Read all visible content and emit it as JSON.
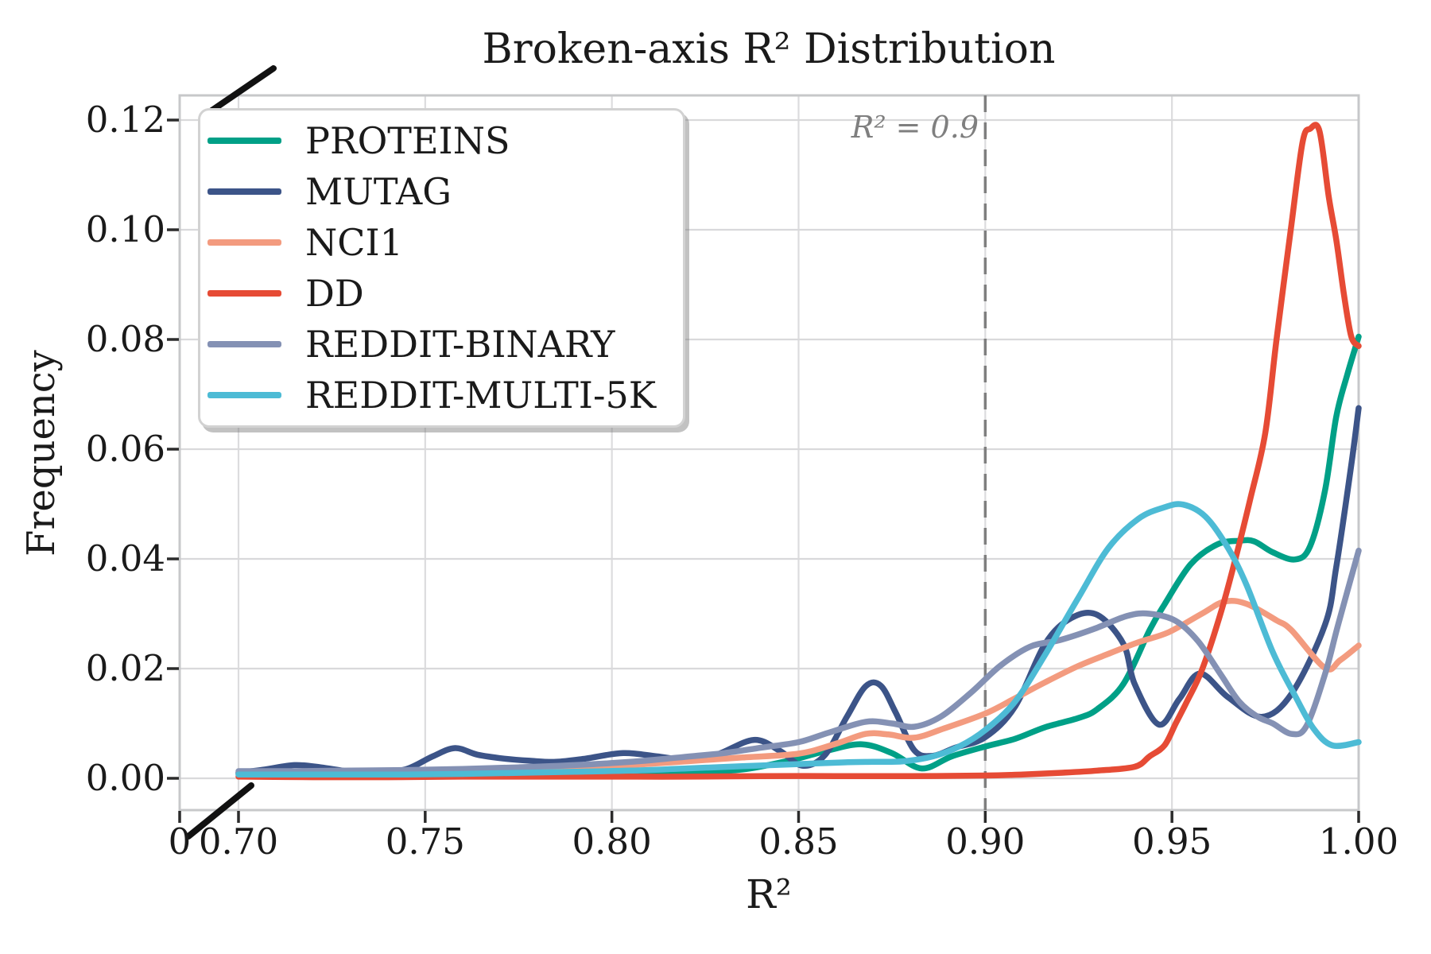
{
  "chart_data": {
    "type": "line",
    "title": "Broken-axis R² Distribution",
    "xlabel": "R²",
    "ylabel": "Frequency",
    "xlim": [
      0.7,
      1.0
    ],
    "ylim": [
      0.0,
      0.1245
    ],
    "grid": true,
    "legend_position": "upper left",
    "axis_break": {
      "axis": "x",
      "between": [
        "0",
        "0.70"
      ]
    },
    "x_ticks": [
      {
        "label": "0",
        "value": 0
      },
      {
        "label": "0.70",
        "value": 0.7
      },
      {
        "label": "0.75",
        "value": 0.75
      },
      {
        "label": "0.80",
        "value": 0.8
      },
      {
        "label": "0.85",
        "value": 0.85
      },
      {
        "label": "0.90",
        "value": 0.9
      },
      {
        "label": "0.95",
        "value": 0.95
      },
      {
        "label": "1.00",
        "value": 1.0
      }
    ],
    "y_ticks": [
      {
        "label": "0.00",
        "value": 0.0
      },
      {
        "label": "0.02",
        "value": 0.02
      },
      {
        "label": "0.04",
        "value": 0.04
      },
      {
        "label": "0.06",
        "value": 0.06
      },
      {
        "label": "0.08",
        "value": 0.08
      },
      {
        "label": "0.10",
        "value": 0.1
      },
      {
        "label": "0.12",
        "value": 0.12
      }
    ],
    "vline": {
      "x": 0.9,
      "label": "R² = 0.9",
      "style": "dashed",
      "color": "#7f7f7f"
    },
    "series": [
      {
        "name": "PROTEINS",
        "color": "#00A087",
        "points": [
          [
            0.7,
            0.0008
          ],
          [
            0.71,
            0.0008
          ],
          [
            0.72,
            0.0008
          ],
          [
            0.73,
            0.0008
          ],
          [
            0.74,
            0.0008
          ],
          [
            0.752,
            0.001
          ],
          [
            0.763,
            0.0013
          ],
          [
            0.775,
            0.0014
          ],
          [
            0.788,
            0.001
          ],
          [
            0.8,
            0.0008
          ],
          [
            0.812,
            0.0008
          ],
          [
            0.824,
            0.0011
          ],
          [
            0.836,
            0.0017
          ],
          [
            0.848,
            0.0033
          ],
          [
            0.858,
            0.0051
          ],
          [
            0.867,
            0.0062
          ],
          [
            0.875,
            0.0046
          ],
          [
            0.883,
            0.0018
          ],
          [
            0.891,
            0.004
          ],
          [
            0.9,
            0.0058
          ],
          [
            0.908,
            0.0072
          ],
          [
            0.916,
            0.0093
          ],
          [
            0.925,
            0.011
          ],
          [
            0.93,
            0.0126
          ],
          [
            0.937,
            0.0172
          ],
          [
            0.944,
            0.027
          ],
          [
            0.948,
            0.0317
          ],
          [
            0.955,
            0.039
          ],
          [
            0.962,
            0.0426
          ],
          [
            0.968,
            0.0433
          ],
          [
            0.972,
            0.0432
          ],
          [
            0.977,
            0.0412
          ],
          [
            0.983,
            0.0399
          ],
          [
            0.987,
            0.0423
          ],
          [
            0.991,
            0.0525
          ],
          [
            0.994,
            0.0659
          ],
          [
            0.997,
            0.0737
          ],
          [
            1.0,
            0.0805
          ]
        ]
      },
      {
        "name": "MUTAG",
        "color": "#3C5488",
        "points": [
          [
            0.7,
            0.001
          ],
          [
            0.707,
            0.0016
          ],
          [
            0.715,
            0.0024
          ],
          [
            0.722,
            0.002
          ],
          [
            0.73,
            0.0012
          ],
          [
            0.737,
            0.001
          ],
          [
            0.745,
            0.0017
          ],
          [
            0.752,
            0.004
          ],
          [
            0.758,
            0.0055
          ],
          [
            0.764,
            0.0043
          ],
          [
            0.771,
            0.0036
          ],
          [
            0.778,
            0.0032
          ],
          [
            0.785,
            0.003
          ],
          [
            0.793,
            0.0036
          ],
          [
            0.803,
            0.0046
          ],
          [
            0.812,
            0.004
          ],
          [
            0.82,
            0.0034
          ],
          [
            0.828,
            0.0043
          ],
          [
            0.838,
            0.007
          ],
          [
            0.845,
            0.005
          ],
          [
            0.851,
            0.0023
          ],
          [
            0.857,
            0.0042
          ],
          [
            0.863,
            0.0113
          ],
          [
            0.868,
            0.0168
          ],
          [
            0.872,
            0.0169
          ],
          [
            0.876,
            0.012
          ],
          [
            0.881,
            0.0051
          ],
          [
            0.886,
            0.0041
          ],
          [
            0.892,
            0.0056
          ],
          [
            0.9,
            0.0075
          ],
          [
            0.908,
            0.0131
          ],
          [
            0.916,
            0.0245
          ],
          [
            0.923,
            0.0292
          ],
          [
            0.93,
            0.0298
          ],
          [
            0.937,
            0.0245
          ],
          [
            0.94,
            0.0172
          ],
          [
            0.9465,
            0.0098
          ],
          [
            0.952,
            0.0145
          ],
          [
            0.9575,
            0.0191
          ],
          [
            0.965,
            0.0148
          ],
          [
            0.974,
            0.0112
          ],
          [
            0.982,
            0.0154
          ],
          [
            0.991,
            0.028
          ],
          [
            0.994,
            0.0385
          ],
          [
            0.998,
            0.057
          ],
          [
            1.0,
            0.0675
          ]
        ]
      },
      {
        "name": "NCI1",
        "color": "#F39B7F",
        "points": [
          [
            0.7,
            0.0006
          ],
          [
            0.715,
            0.0006
          ],
          [
            0.73,
            0.0006
          ],
          [
            0.745,
            0.0007
          ],
          [
            0.76,
            0.0008
          ],
          [
            0.775,
            0.0011
          ],
          [
            0.79,
            0.0016
          ],
          [
            0.805,
            0.0024
          ],
          [
            0.82,
            0.0031
          ],
          [
            0.835,
            0.0038
          ],
          [
            0.85,
            0.0045
          ],
          [
            0.86,
            0.0063
          ],
          [
            0.868,
            0.0081
          ],
          [
            0.874,
            0.008
          ],
          [
            0.881,
            0.0074
          ],
          [
            0.889,
            0.0091
          ],
          [
            0.9,
            0.0118
          ],
          [
            0.908,
            0.0146
          ],
          [
            0.916,
            0.0175
          ],
          [
            0.925,
            0.0205
          ],
          [
            0.933,
            0.0227
          ],
          [
            0.941,
            0.0248
          ],
          [
            0.949,
            0.0266
          ],
          [
            0.958,
            0.03
          ],
          [
            0.964,
            0.0322
          ],
          [
            0.97,
            0.0318
          ],
          [
            0.978,
            0.0288
          ],
          [
            0.982,
            0.027
          ],
          [
            0.991,
            0.0201
          ],
          [
            0.995,
            0.0215
          ],
          [
            1.0,
            0.0242
          ]
        ]
      },
      {
        "name": "DD",
        "color": "#E64B35",
        "points": [
          [
            0.7,
            0.0003
          ],
          [
            0.72,
            0.0002
          ],
          [
            0.74,
            0.0002
          ],
          [
            0.76,
            0.0003
          ],
          [
            0.78,
            0.0003
          ],
          [
            0.8,
            0.0003
          ],
          [
            0.82,
            0.0003
          ],
          [
            0.84,
            0.0004
          ],
          [
            0.86,
            0.0004
          ],
          [
            0.88,
            0.0004
          ],
          [
            0.9,
            0.0005
          ],
          [
            0.91,
            0.0007
          ],
          [
            0.92,
            0.001
          ],
          [
            0.93,
            0.0014
          ],
          [
            0.94,
            0.0021
          ],
          [
            0.944,
            0.004
          ],
          [
            0.948,
            0.006
          ],
          [
            0.951,
            0.01
          ],
          [
            0.954,
            0.014
          ],
          [
            0.958,
            0.0197
          ],
          [
            0.963,
            0.03
          ],
          [
            0.967,
            0.04
          ],
          [
            0.971,
            0.051
          ],
          [
            0.975,
            0.063
          ],
          [
            0.978,
            0.08
          ],
          [
            0.982,
            0.101
          ],
          [
            0.985,
            0.116
          ],
          [
            0.987,
            0.1184
          ],
          [
            0.9895,
            0.118
          ],
          [
            0.992,
            0.106
          ],
          [
            0.994,
            0.0982
          ],
          [
            0.996,
            0.0885
          ],
          [
            0.998,
            0.0806
          ],
          [
            1.0,
            0.0788
          ]
        ]
      },
      {
        "name": "REDDIT-BINARY",
        "color": "#8491B4",
        "points": [
          [
            0.7,
            0.0013
          ],
          [
            0.715,
            0.0013
          ],
          [
            0.73,
            0.0014
          ],
          [
            0.745,
            0.0015
          ],
          [
            0.76,
            0.0017
          ],
          [
            0.775,
            0.002
          ],
          [
            0.79,
            0.0024
          ],
          [
            0.805,
            0.003
          ],
          [
            0.818,
            0.0038
          ],
          [
            0.83,
            0.0046
          ],
          [
            0.84,
            0.0056
          ],
          [
            0.85,
            0.0066
          ],
          [
            0.858,
            0.0083
          ],
          [
            0.868,
            0.0103
          ],
          [
            0.875,
            0.01
          ],
          [
            0.881,
            0.0094
          ],
          [
            0.888,
            0.0112
          ],
          [
            0.896,
            0.0155
          ],
          [
            0.904,
            0.0205
          ],
          [
            0.912,
            0.024
          ],
          [
            0.92,
            0.0252
          ],
          [
            0.929,
            0.0272
          ],
          [
            0.938,
            0.0296
          ],
          [
            0.944,
            0.03
          ],
          [
            0.951,
            0.0287
          ],
          [
            0.957,
            0.025
          ],
          [
            0.963,
            0.019
          ],
          [
            0.968,
            0.014
          ],
          [
            0.973,
            0.0112
          ],
          [
            0.977,
            0.01
          ],
          [
            0.982,
            0.0081
          ],
          [
            0.986,
            0.0095
          ],
          [
            0.991,
            0.019
          ],
          [
            0.9945,
            0.028
          ],
          [
            1.0,
            0.0415
          ]
        ]
      },
      {
        "name": "REDDIT-MULTI-5K",
        "color": "#4DBBD5",
        "points": [
          [
            0.7,
            0.0007
          ],
          [
            0.715,
            0.0007
          ],
          [
            0.73,
            0.0007
          ],
          [
            0.745,
            0.0007
          ],
          [
            0.76,
            0.0008
          ],
          [
            0.775,
            0.001
          ],
          [
            0.79,
            0.0012
          ],
          [
            0.805,
            0.0014
          ],
          [
            0.82,
            0.0018
          ],
          [
            0.835,
            0.0022
          ],
          [
            0.85,
            0.0026
          ],
          [
            0.862,
            0.0029
          ],
          [
            0.87,
            0.003
          ],
          [
            0.878,
            0.0031
          ],
          [
            0.886,
            0.004
          ],
          [
            0.893,
            0.0058
          ],
          [
            0.9,
            0.0088
          ],
          [
            0.908,
            0.014
          ],
          [
            0.916,
            0.0225
          ],
          [
            0.925,
            0.033
          ],
          [
            0.933,
            0.042
          ],
          [
            0.941,
            0.0473
          ],
          [
            0.948,
            0.0494
          ],
          [
            0.953,
            0.0499
          ],
          [
            0.959,
            0.0477
          ],
          [
            0.965,
            0.042
          ],
          [
            0.97,
            0.0352
          ],
          [
            0.977,
            0.023
          ],
          [
            0.983,
            0.015
          ],
          [
            0.988,
            0.009
          ],
          [
            0.993,
            0.006
          ],
          [
            1.0,
            0.0066
          ]
        ]
      }
    ]
  }
}
